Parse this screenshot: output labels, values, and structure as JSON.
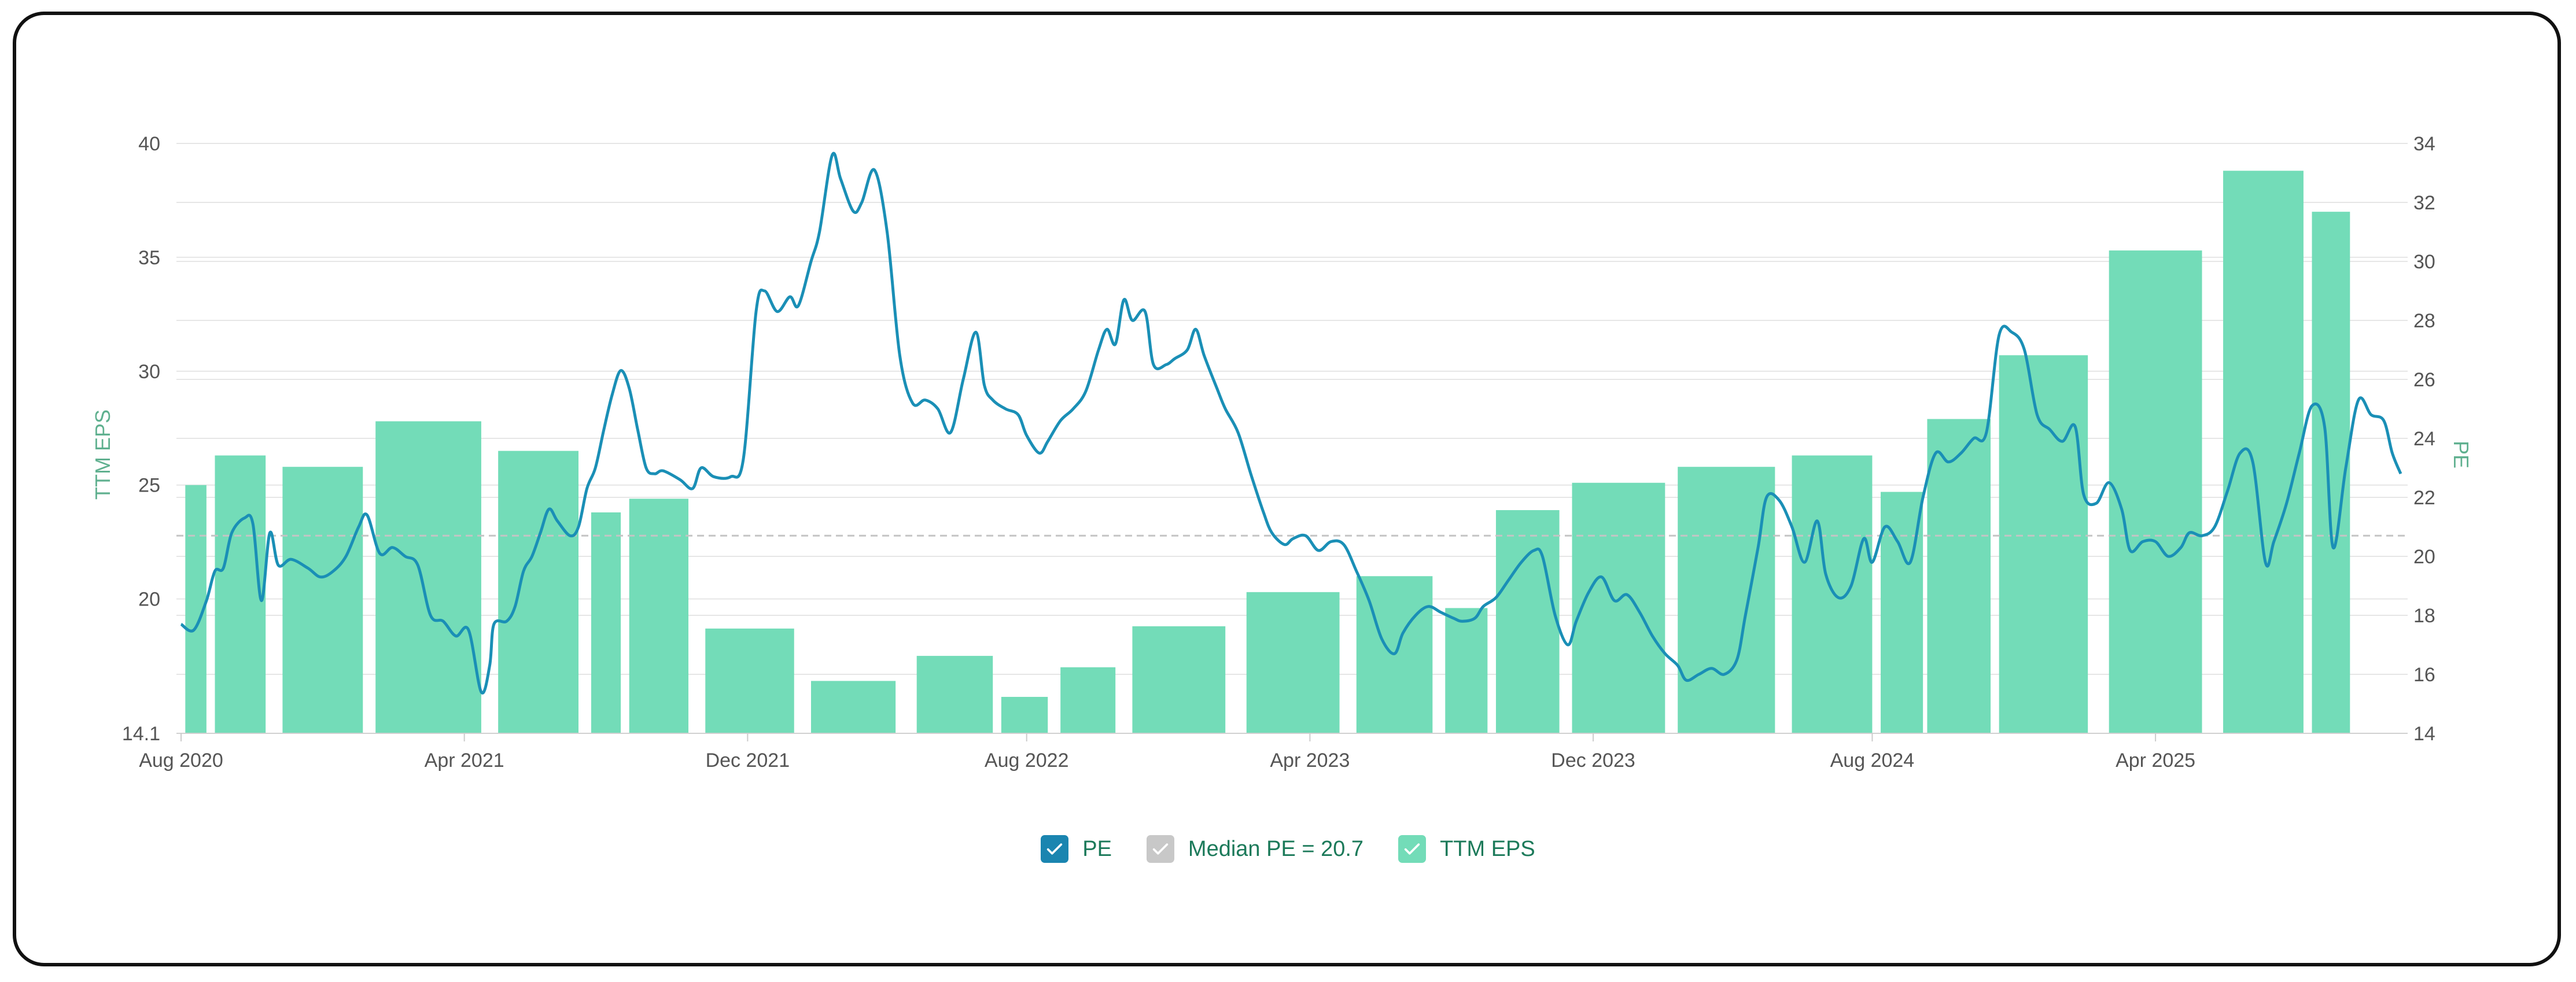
{
  "chart_data": {
    "type": "bar+line",
    "x_tick_labels": [
      "Aug 2020",
      "Apr 2021",
      "Dec 2021",
      "Aug 2022",
      "Apr 2023",
      "Dec 2023",
      "Aug 2024",
      "Apr 2025"
    ],
    "x_range": [
      2020.58,
      2025.83
    ],
    "y_left": {
      "label": "TTM EPS",
      "ticks": [
        40,
        35,
        30,
        25,
        20,
        14.1
      ],
      "range": [
        14.1,
        40
      ]
    },
    "y_right": {
      "label": "PE",
      "ticks": [
        34,
        32,
        30,
        28,
        26,
        24,
        22,
        20,
        18,
        16,
        14
      ],
      "range": [
        14,
        34
      ]
    },
    "series": [
      {
        "name": "TTM EPS",
        "type": "bar",
        "axis": "left",
        "color": "#73dcb8",
        "bars": [
          {
            "start": 2020.59,
            "end": 2020.64,
            "value": 25.0
          },
          {
            "start": 2020.66,
            "end": 2020.78,
            "value": 26.3
          },
          {
            "start": 2020.82,
            "end": 2021.01,
            "value": 25.8
          },
          {
            "start": 2021.04,
            "end": 2021.29,
            "value": 27.8
          },
          {
            "start": 2021.33,
            "end": 2021.52,
            "value": 26.5
          },
          {
            "start": 2021.55,
            "end": 2021.62,
            "value": 23.8
          },
          {
            "start": 2021.64,
            "end": 2021.78,
            "value": 24.4
          },
          {
            "start": 2021.82,
            "end": 2022.03,
            "value": 18.7
          },
          {
            "start": 2022.07,
            "end": 2022.27,
            "value": 16.4
          },
          {
            "start": 2022.32,
            "end": 2022.5,
            "value": 17.5
          },
          {
            "start": 2022.52,
            "end": 2022.63,
            "value": 15.7
          },
          {
            "start": 2022.66,
            "end": 2022.79,
            "value": 17.0
          },
          {
            "start": 2022.83,
            "end": 2023.05,
            "value": 18.8
          },
          {
            "start": 2023.1,
            "end": 2023.32,
            "value": 20.3
          },
          {
            "start": 2023.36,
            "end": 2023.54,
            "value": 21.0
          },
          {
            "start": 2023.57,
            "end": 2023.67,
            "value": 19.6
          },
          {
            "start": 2023.69,
            "end": 2023.84,
            "value": 23.9
          },
          {
            "start": 2023.87,
            "end": 2024.09,
            "value": 25.1
          },
          {
            "start": 2024.12,
            "end": 2024.35,
            "value": 25.8
          },
          {
            "start": 2024.39,
            "end": 2024.58,
            "value": 26.3
          },
          {
            "start": 2024.6,
            "end": 2024.7,
            "value": 24.7
          },
          {
            "start": 2024.71,
            "end": 2024.86,
            "value": 27.9
          },
          {
            "start": 2024.88,
            "end": 2025.09,
            "value": 30.7
          },
          {
            "start": 2025.14,
            "end": 2025.36,
            "value": 35.3
          },
          {
            "start": 2025.41,
            "end": 2025.6,
            "value": 38.8
          },
          {
            "start": 2025.62,
            "end": 2025.71,
            "value": 37.0
          }
        ]
      },
      {
        "name": "PE",
        "type": "line",
        "axis": "right",
        "color": "#1a8fb6",
        "points": [
          [
            2020.58,
            17.7
          ],
          [
            2020.61,
            17.5
          ],
          [
            2020.64,
            18.5
          ],
          [
            2020.66,
            19.5
          ],
          [
            2020.68,
            19.6
          ],
          [
            2020.7,
            20.8
          ],
          [
            2020.73,
            21.3
          ],
          [
            2020.75,
            21.1
          ],
          [
            2020.77,
            18.5
          ],
          [
            2020.79,
            20.8
          ],
          [
            2020.81,
            19.7
          ],
          [
            2020.84,
            19.9
          ],
          [
            2020.88,
            19.6
          ],
          [
            2020.91,
            19.3
          ],
          [
            2020.94,
            19.5
          ],
          [
            2020.97,
            20.0
          ],
          [
            2021.0,
            21.0
          ],
          [
            2021.02,
            21.4
          ],
          [
            2021.05,
            20.1
          ],
          [
            2021.08,
            20.3
          ],
          [
            2021.11,
            20.0
          ],
          [
            2021.14,
            19.7
          ],
          [
            2021.17,
            18.0
          ],
          [
            2021.2,
            17.8
          ],
          [
            2021.23,
            17.3
          ],
          [
            2021.26,
            17.5
          ],
          [
            2021.29,
            15.4
          ],
          [
            2021.31,
            16.3
          ],
          [
            2021.32,
            17.7
          ],
          [
            2021.35,
            17.8
          ],
          [
            2021.37,
            18.3
          ],
          [
            2021.39,
            19.5
          ],
          [
            2021.41,
            20.0
          ],
          [
            2021.43,
            20.8
          ],
          [
            2021.45,
            21.6
          ],
          [
            2021.47,
            21.2
          ],
          [
            2021.5,
            20.7
          ],
          [
            2021.52,
            21.0
          ],
          [
            2021.54,
            22.3
          ],
          [
            2021.56,
            23.0
          ],
          [
            2021.58,
            24.3
          ],
          [
            2021.6,
            25.5
          ],
          [
            2021.62,
            26.3
          ],
          [
            2021.64,
            25.7
          ],
          [
            2021.66,
            24.3
          ],
          [
            2021.68,
            23.0
          ],
          [
            2021.7,
            22.8
          ],
          [
            2021.72,
            22.9
          ],
          [
            2021.76,
            22.6
          ],
          [
            2021.79,
            22.3
          ],
          [
            2021.81,
            23.0
          ],
          [
            2021.84,
            22.7
          ],
          [
            2021.88,
            22.7
          ],
          [
            2021.91,
            23.3
          ],
          [
            2021.94,
            28.3
          ],
          [
            2021.96,
            29.0
          ],
          [
            2021.99,
            28.3
          ],
          [
            2022.02,
            28.8
          ],
          [
            2022.04,
            28.5
          ],
          [
            2022.07,
            30.0
          ],
          [
            2022.09,
            31.0
          ],
          [
            2022.12,
            33.6
          ],
          [
            2022.14,
            32.8
          ],
          [
            2022.17,
            31.7
          ],
          [
            2022.19,
            32.0
          ],
          [
            2022.22,
            33.1
          ],
          [
            2022.25,
            31.0
          ],
          [
            2022.28,
            26.8
          ],
          [
            2022.31,
            25.2
          ],
          [
            2022.34,
            25.3
          ],
          [
            2022.37,
            25.0
          ],
          [
            2022.4,
            24.2
          ],
          [
            2022.43,
            26.0
          ],
          [
            2022.46,
            27.6
          ],
          [
            2022.48,
            25.8
          ],
          [
            2022.5,
            25.3
          ],
          [
            2022.53,
            25.0
          ],
          [
            2022.56,
            24.8
          ],
          [
            2022.58,
            24.1
          ],
          [
            2022.61,
            23.5
          ],
          [
            2022.63,
            23.9
          ],
          [
            2022.66,
            24.6
          ],
          [
            2022.69,
            25.0
          ],
          [
            2022.72,
            25.6
          ],
          [
            2022.75,
            27.0
          ],
          [
            2022.77,
            27.7
          ],
          [
            2022.79,
            27.2
          ],
          [
            2022.81,
            28.7
          ],
          [
            2022.83,
            28.0
          ],
          [
            2022.86,
            28.3
          ],
          [
            2022.88,
            26.5
          ],
          [
            2022.91,
            26.5
          ],
          [
            2022.93,
            26.7
          ],
          [
            2022.96,
            27.0
          ],
          [
            2022.98,
            27.7
          ],
          [
            2023.0,
            26.8
          ],
          [
            2023.03,
            25.7
          ],
          [
            2023.05,
            25.0
          ],
          [
            2023.08,
            24.2
          ],
          [
            2023.11,
            22.8
          ],
          [
            2023.14,
            21.5
          ],
          [
            2023.16,
            20.8
          ],
          [
            2023.19,
            20.4
          ],
          [
            2023.21,
            20.6
          ],
          [
            2023.24,
            20.7
          ],
          [
            2023.27,
            20.2
          ],
          [
            2023.3,
            20.5
          ],
          [
            2023.33,
            20.4
          ],
          [
            2023.36,
            19.5
          ],
          [
            2023.39,
            18.5
          ],
          [
            2023.42,
            17.2
          ],
          [
            2023.45,
            16.7
          ],
          [
            2023.47,
            17.4
          ],
          [
            2023.5,
            18.0
          ],
          [
            2023.53,
            18.3
          ],
          [
            2023.56,
            18.1
          ],
          [
            2023.59,
            17.9
          ],
          [
            2023.61,
            17.8
          ],
          [
            2023.64,
            17.9
          ],
          [
            2023.66,
            18.3
          ],
          [
            2023.69,
            18.6
          ],
          [
            2023.72,
            19.2
          ],
          [
            2023.75,
            19.8
          ],
          [
            2023.78,
            20.2
          ],
          [
            2023.8,
            20.0
          ],
          [
            2023.83,
            18.0
          ],
          [
            2023.86,
            17.0
          ],
          [
            2023.88,
            17.8
          ],
          [
            2023.91,
            18.8
          ],
          [
            2023.94,
            19.3
          ],
          [
            2023.97,
            18.5
          ],
          [
            2024.0,
            18.7
          ],
          [
            2024.03,
            18.1
          ],
          [
            2024.06,
            17.3
          ],
          [
            2024.09,
            16.7
          ],
          [
            2024.12,
            16.3
          ],
          [
            2024.14,
            15.8
          ],
          [
            2024.17,
            16.0
          ],
          [
            2024.2,
            16.2
          ],
          [
            2024.23,
            16.0
          ],
          [
            2024.26,
            16.5
          ],
          [
            2024.28,
            18.0
          ],
          [
            2024.31,
            20.3
          ],
          [
            2024.33,
            22.0
          ],
          [
            2024.36,
            21.9
          ],
          [
            2024.39,
            21.0
          ],
          [
            2024.42,
            19.8
          ],
          [
            2024.45,
            21.2
          ],
          [
            2024.47,
            19.4
          ],
          [
            2024.5,
            18.6
          ],
          [
            2024.53,
            19.0
          ],
          [
            2024.56,
            20.6
          ],
          [
            2024.58,
            19.8
          ],
          [
            2024.61,
            21.0
          ],
          [
            2024.64,
            20.5
          ],
          [
            2024.67,
            19.8
          ],
          [
            2024.7,
            22.0
          ],
          [
            2024.73,
            23.5
          ],
          [
            2024.76,
            23.2
          ],
          [
            2024.79,
            23.5
          ],
          [
            2024.82,
            24.0
          ],
          [
            2024.85,
            24.2
          ],
          [
            2024.88,
            27.5
          ],
          [
            2024.91,
            27.6
          ],
          [
            2024.94,
            27.0
          ],
          [
            2024.97,
            24.8
          ],
          [
            2025.0,
            24.3
          ],
          [
            2025.03,
            23.9
          ],
          [
            2025.06,
            24.4
          ],
          [
            2025.08,
            22.1
          ],
          [
            2025.11,
            21.8
          ],
          [
            2025.14,
            22.5
          ],
          [
            2025.17,
            21.6
          ],
          [
            2025.19,
            20.2
          ],
          [
            2025.22,
            20.5
          ],
          [
            2025.25,
            20.5
          ],
          [
            2025.28,
            20.0
          ],
          [
            2025.31,
            20.3
          ],
          [
            2025.33,
            20.8
          ],
          [
            2025.36,
            20.7
          ],
          [
            2025.39,
            21.0
          ],
          [
            2025.42,
            22.2
          ],
          [
            2025.45,
            23.5
          ],
          [
            2025.48,
            23.2
          ],
          [
            2025.51,
            19.8
          ],
          [
            2025.53,
            20.5
          ],
          [
            2025.56,
            21.8
          ],
          [
            2025.59,
            23.5
          ],
          [
            2025.62,
            25.1
          ],
          [
            2025.65,
            24.4
          ],
          [
            2025.67,
            20.3
          ],
          [
            2025.7,
            23.0
          ],
          [
            2025.73,
            25.3
          ],
          [
            2025.76,
            24.8
          ],
          [
            2025.79,
            24.6
          ],
          [
            2025.81,
            23.5
          ],
          [
            2025.83,
            22.8
          ]
        ]
      },
      {
        "name": "Median PE = 20.7",
        "type": "hline",
        "axis": "right",
        "value": 20.7,
        "color": "#c4c4c4"
      }
    ]
  },
  "legend": [
    {
      "key": "pe",
      "label": "PE",
      "color": "#1a85b0"
    },
    {
      "key": "median",
      "label": "Median PE = 20.7",
      "color": "#c8c8c8"
    },
    {
      "key": "eps",
      "label": "TTM EPS",
      "color": "#73dcb8"
    }
  ]
}
